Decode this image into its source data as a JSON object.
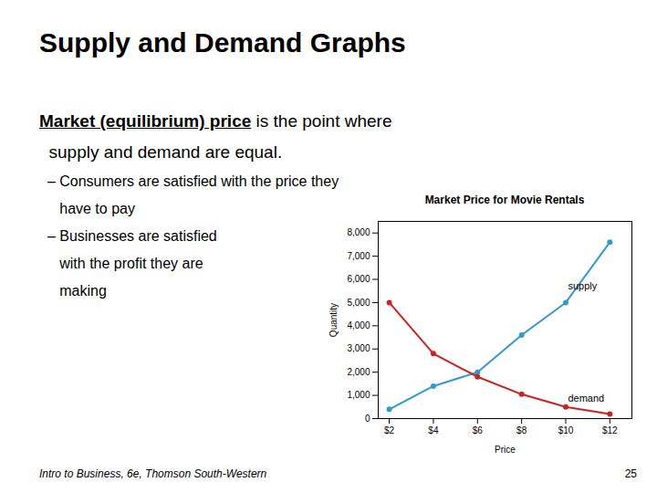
{
  "slide_title": "Supply and Demand Graphs",
  "body": [
    [
      "Market (equilibrium) price",
      " is the point where"
    ],
    [
      "  supply and demand are equal."
    ],
    [
      "  – Consumers are satisfied with the price they"
    ],
    [
      "     have to pay"
    ],
    [
      "  – Businesses are satisfied"
    ],
    [
      "     with the profit they are"
    ],
    [
      "     making"
    ]
  ],
  "footer": "Intro to Business, 6e, Thomson South-Western",
  "page_number": "25",
  "chart_data": {
    "type": "line",
    "title": "Market Price for Movie Rentals",
    "x": [
      2,
      4,
      6,
      8,
      10,
      12
    ],
    "series": [
      {
        "color": "#3399CC",
        "marker": "circle",
        "values": [
          400,
          1400,
          2000,
          3600,
          5000,
          7600
        ]
      },
      {
        "color": "#CC2222",
        "marker": "circle",
        "values": [
          5000,
          2800,
          1800,
          1050,
          500,
          200
        ]
      }
    ],
    "annotations": [
      {
        "text": "supply",
        "x": 10.1,
        "y": 5700
      },
      {
        "text": "demand",
        "x": 10.1,
        "y": 850
      }
    ],
    "xlabel": "Price",
    "ylabel": "Quantity",
    "xlim": [
      1.5,
      13
    ],
    "ylim": [
      0,
      8500
    ],
    "xticks": [
      {
        "value": 2,
        "label": "$2"
      },
      {
        "value": 4,
        "label": "$4"
      },
      {
        "value": 6,
        "label": "$6"
      },
      {
        "value": 8,
        "label": "$8"
      },
      {
        "value": 10,
        "label": "$10"
      },
      {
        "value": 12,
        "label": "$12"
      }
    ],
    "yticks": [
      0,
      {
        "value": 1000,
        "label": "1,000"
      },
      {
        "value": 2000,
        "label": "2,000"
      },
      {
        "value": 3000,
        "label": "3,000"
      },
      {
        "value": 4000,
        "label": "4,000"
      },
      {
        "value": 5000,
        "label": "5,000"
      },
      {
        "value": 6000,
        "label": "6,000"
      },
      {
        "value": 7000,
        "label": "7,000"
      },
      {
        "value": 8000,
        "label": "8,000"
      }
    ]
  }
}
